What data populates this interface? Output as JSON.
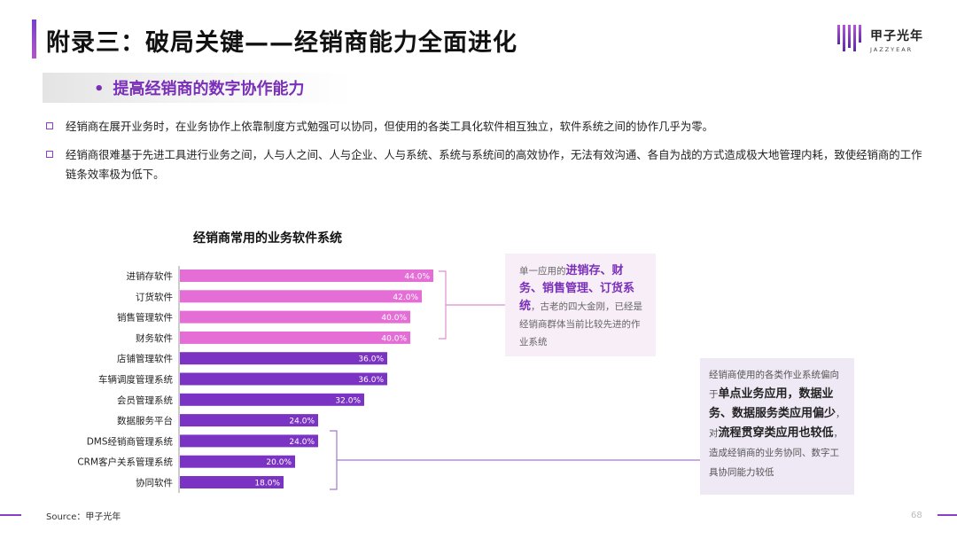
{
  "header": {
    "title": "附录三：破局关键——经销商能力全面进化",
    "logo_cn": "甲子光年",
    "logo_en": "JAZZYEAR"
  },
  "section": {
    "bullet": "•",
    "subtitle": "提高经销商的数字协作能力"
  },
  "bullets": [
    "经销商在展开业务时，在业务协作上依靠制度方式勉强可以协同，但使用的各类工具化软件相互独立，软件系统之间的协作几乎为零。",
    "经销商很难基于先进工具进行业务之间，人与人之间、人与企业、人与系统、系统与系统间的高效协作，无法有效沟通、各自为战的方式造成极大地管理内耗，致使经销商的工作链条效率极为低下。"
  ],
  "callout_top": {
    "pre": "单一应用的",
    "highlight": "进销存、财务、销售管理、订货系统",
    "post": "，古老的四大金刚，已经是经销商群体当前比较先进的作业系统"
  },
  "callout_bottom": {
    "t1": "经销商使用的各类作业系统偏向于",
    "h1": "单点业务应用，数据业务、数据服务类应用偏少",
    "t2": "，对",
    "h2": "流程贯穿类应用也较低",
    "t3": "，造成经销商的业务协同、数字工具协同能力较低"
  },
  "footer": {
    "source": "Source：甲子光年",
    "page": "68"
  },
  "colors": {
    "pink": "#e56dd6",
    "purple": "#7b33c4",
    "accent": "#8a3ec9"
  },
  "chart_data": {
    "type": "bar",
    "orientation": "horizontal",
    "title": "经销商常用的业务软件系统",
    "categories": [
      "进销存软件",
      "订货软件",
      "销售管理软件",
      "财务软件",
      "店铺管理软件",
      "车辆调度管理系统",
      "会员管理系统",
      "数据服务平台",
      "DMS经销商管理系统",
      "CRM客户关系管理系统",
      "协同软件"
    ],
    "values": [
      44.0,
      42.0,
      40.0,
      40.0,
      36.0,
      36.0,
      32.0,
      24.0,
      24.0,
      20.0,
      18.0
    ],
    "value_labels": [
      "44.0%",
      "42.0%",
      "40.0%",
      "40.0%",
      "36.0%",
      "36.0%",
      "32.0%",
      "24.0%",
      "24.0%",
      "20.0%",
      "18.0%"
    ],
    "bar_colors": [
      "#e56dd6",
      "#e56dd6",
      "#e56dd6",
      "#e56dd6",
      "#7b33c4",
      "#7b33c4",
      "#7b33c4",
      "#7b33c4",
      "#7b33c4",
      "#7b33c4",
      "#7b33c4"
    ],
    "xlim": [
      0,
      50
    ],
    "grid": false,
    "legend": "none"
  }
}
